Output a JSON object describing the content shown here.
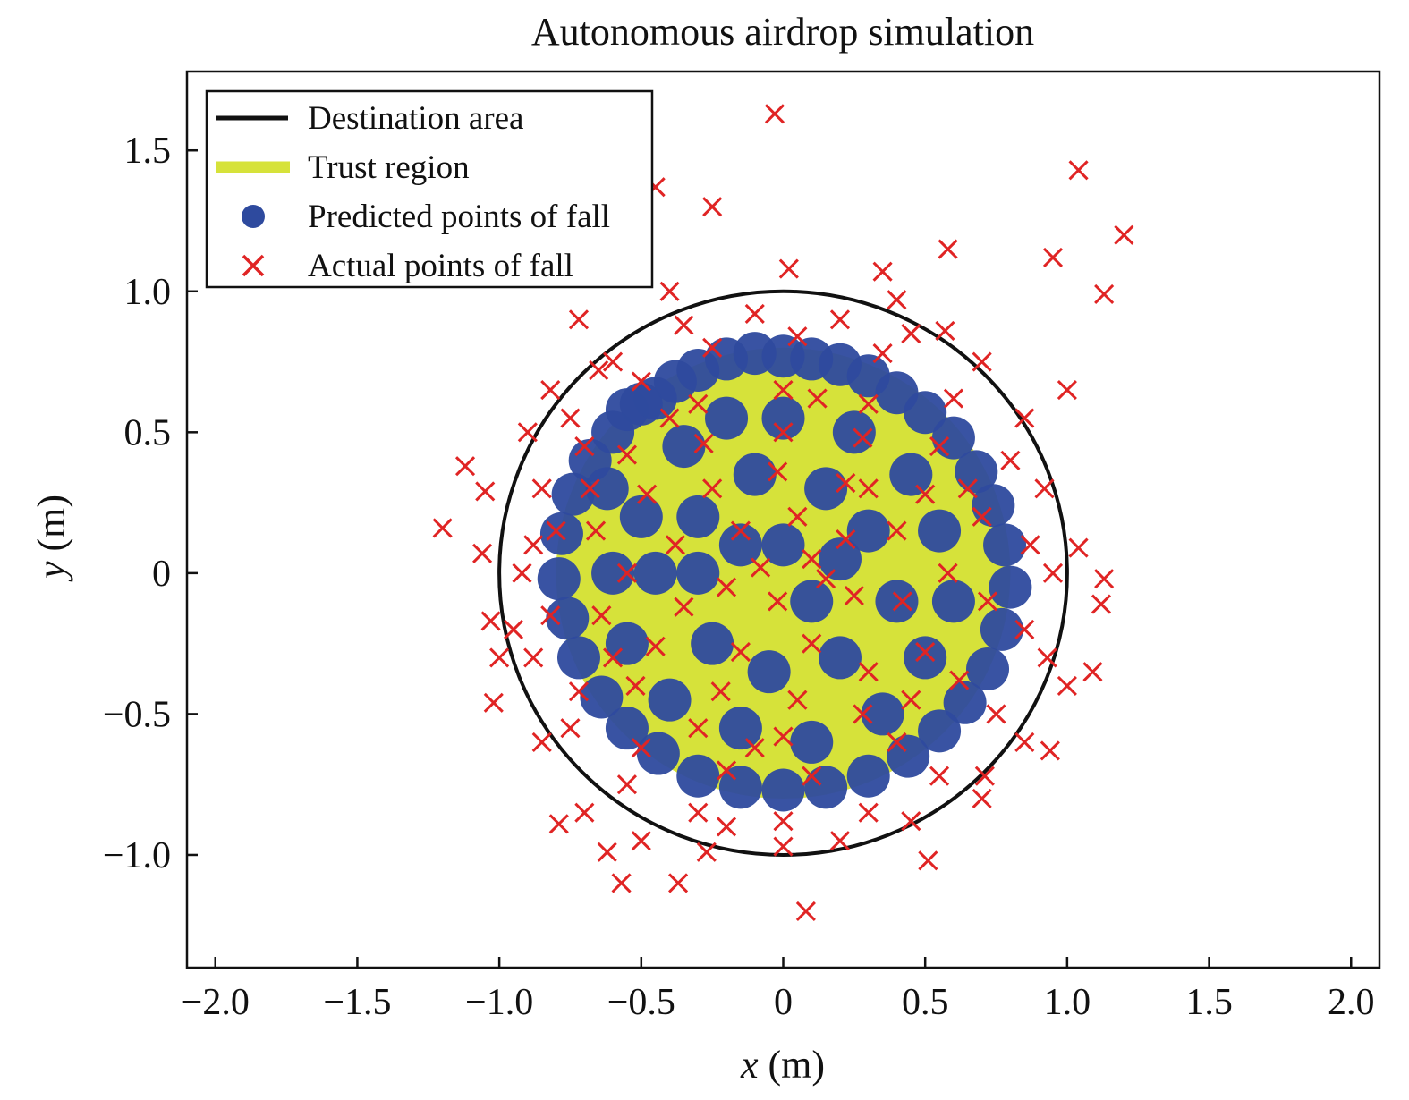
{
  "chart_data": {
    "type": "scatter",
    "title": "Autonomous airdrop simulation",
    "xlabel": {
      "var": "x",
      "unit": " (m)"
    },
    "ylabel": {
      "var": "y",
      "unit": " (m)"
    },
    "xlim": [
      -2.1,
      2.1
    ],
    "ylim": [
      -1.4,
      1.78
    ],
    "xticks": [
      {
        "value": -2.0,
        "label": "−2.0"
      },
      {
        "value": -1.5,
        "label": "−1.5"
      },
      {
        "value": -1.0,
        "label": "−1.0"
      },
      {
        "value": -0.5,
        "label": "−0.5"
      },
      {
        "value": 0,
        "label": "0"
      },
      {
        "value": 0.5,
        "label": "0.5"
      },
      {
        "value": 1.0,
        "label": "1.0"
      },
      {
        "value": 1.5,
        "label": "1.5"
      },
      {
        "value": 2.0,
        "label": "2.0"
      }
    ],
    "yticks": [
      {
        "value": -1.0,
        "label": "−1.0"
      },
      {
        "value": -0.5,
        "label": "−0.5"
      },
      {
        "value": 0,
        "label": "0"
      },
      {
        "value": 0.5,
        "label": "0.5"
      },
      {
        "value": 1.0,
        "label": "1.0"
      },
      {
        "value": 1.5,
        "label": "1.5"
      }
    ],
    "grid": false,
    "legend_position": "top-left",
    "series": [
      {
        "name": "Destination area",
        "kind": "circle",
        "center": [
          0.0,
          0.0
        ],
        "radius": 1.0,
        "color": "#111111"
      },
      {
        "name": "Trust region",
        "kind": "circle",
        "center": [
          0.0,
          0.0
        ],
        "radius": 0.8,
        "color": "#d6e23a"
      },
      {
        "name": "Predicted points of fall",
        "kind": "cloud",
        "center": [
          0.0,
          0.0
        ],
        "radius": 0.78,
        "color": "#2e4a9e",
        "points": [
          [
            -0.55,
            0.58
          ],
          [
            -0.5,
            0.6
          ],
          [
            -0.45,
            0.62
          ],
          [
            -0.38,
            0.68
          ],
          [
            -0.3,
            0.72
          ],
          [
            -0.2,
            0.76
          ],
          [
            -0.1,
            0.78
          ],
          [
            0.0,
            0.77
          ],
          [
            0.1,
            0.76
          ],
          [
            0.2,
            0.74
          ],
          [
            0.3,
            0.7
          ],
          [
            0.4,
            0.64
          ],
          [
            0.5,
            0.57
          ],
          [
            0.6,
            0.48
          ],
          [
            0.68,
            0.36
          ],
          [
            0.74,
            0.24
          ],
          [
            0.78,
            0.1
          ],
          [
            0.8,
            -0.05
          ],
          [
            0.77,
            -0.2
          ],
          [
            0.72,
            -0.34
          ],
          [
            0.64,
            -0.46
          ],
          [
            0.55,
            -0.56
          ],
          [
            0.44,
            -0.65
          ],
          [
            0.3,
            -0.72
          ],
          [
            0.15,
            -0.76
          ],
          [
            0.0,
            -0.77
          ],
          [
            -0.15,
            -0.76
          ],
          [
            -0.3,
            -0.72
          ],
          [
            -0.44,
            -0.64
          ],
          [
            -0.55,
            -0.55
          ],
          [
            -0.64,
            -0.44
          ],
          [
            -0.72,
            -0.3
          ],
          [
            -0.76,
            -0.16
          ],
          [
            -0.79,
            -0.02
          ],
          [
            -0.78,
            0.14
          ],
          [
            -0.74,
            0.28
          ],
          [
            -0.68,
            0.4
          ],
          [
            -0.6,
            0.5
          ],
          [
            -0.62,
            0.3
          ],
          [
            -0.5,
            0.2
          ],
          [
            -0.35,
            0.45
          ],
          [
            -0.2,
            0.55
          ],
          [
            0.0,
            0.55
          ],
          [
            0.25,
            0.5
          ],
          [
            0.45,
            0.35
          ],
          [
            0.55,
            0.15
          ],
          [
            0.6,
            -0.1
          ],
          [
            0.5,
            -0.3
          ],
          [
            0.35,
            -0.5
          ],
          [
            0.1,
            -0.6
          ],
          [
            -0.15,
            -0.55
          ],
          [
            -0.4,
            -0.45
          ],
          [
            -0.55,
            -0.25
          ],
          [
            -0.6,
            0.0
          ],
          [
            -0.45,
            0.0
          ],
          [
            -0.3,
            0.2
          ],
          [
            -0.1,
            0.35
          ],
          [
            0.15,
            0.3
          ],
          [
            0.3,
            0.15
          ],
          [
            0.4,
            -0.1
          ],
          [
            0.2,
            -0.3
          ],
          [
            -0.05,
            -0.35
          ],
          [
            -0.25,
            -0.25
          ],
          [
            -0.3,
            0.0
          ],
          [
            0.0,
            0.1
          ],
          [
            0.1,
            -0.1
          ],
          [
            -0.15,
            0.1
          ],
          [
            0.2,
            0.05
          ]
        ]
      },
      {
        "name": "Actual points of fall",
        "kind": "scatter",
        "marker": "x",
        "color": "#e02424",
        "points": [
          [
            -0.03,
            1.63
          ],
          [
            1.04,
            1.43
          ],
          [
            1.2,
            1.2
          ],
          [
            -0.25,
            1.3
          ],
          [
            -0.45,
            1.37
          ],
          [
            0.58,
            1.15
          ],
          [
            0.95,
            1.12
          ],
          [
            1.13,
            0.99
          ],
          [
            -0.52,
            1.06
          ],
          [
            0.35,
            1.07
          ],
          [
            0.02,
            1.08
          ],
          [
            0.4,
            0.97
          ],
          [
            -0.4,
            1.0
          ],
          [
            -0.72,
            0.9
          ],
          [
            0.57,
            0.86
          ],
          [
            1.0,
            0.65
          ],
          [
            -0.65,
            0.72
          ],
          [
            -0.82,
            0.65
          ],
          [
            -1.12,
            0.38
          ],
          [
            -1.05,
            0.29
          ],
          [
            -1.2,
            0.16
          ],
          [
            -1.06,
            0.07
          ],
          [
            -1.03,
            -0.17
          ],
          [
            -1.0,
            -0.3
          ],
          [
            -1.02,
            -0.46
          ],
          [
            1.04,
            0.09
          ],
          [
            1.13,
            -0.02
          ],
          [
            1.12,
            -0.11
          ],
          [
            1.09,
            -0.35
          ],
          [
            1.0,
            -0.4
          ],
          [
            0.94,
            -0.63
          ],
          [
            0.71,
            -0.72
          ],
          [
            0.51,
            -1.02
          ],
          [
            0.08,
            -1.2
          ],
          [
            -0.37,
            -1.1
          ],
          [
            -0.57,
            -1.1
          ],
          [
            -0.62,
            -0.99
          ],
          [
            -0.79,
            -0.89
          ],
          [
            -0.27,
            -0.99
          ],
          [
            0.0,
            -0.97
          ],
          [
            -0.9,
            0.5
          ],
          [
            -0.88,
            0.1
          ],
          [
            -0.95,
            -0.2
          ],
          [
            -0.85,
            -0.6
          ],
          [
            -0.7,
            -0.85
          ],
          [
            -0.5,
            -0.95
          ],
          [
            -0.2,
            -0.9
          ],
          [
            0.2,
            -0.95
          ],
          [
            0.45,
            -0.88
          ],
          [
            0.7,
            -0.8
          ],
          [
            0.85,
            -0.6
          ],
          [
            0.93,
            -0.3
          ],
          [
            0.95,
            0.0
          ],
          [
            0.92,
            0.3
          ],
          [
            0.85,
            0.55
          ],
          [
            0.7,
            0.75
          ],
          [
            0.45,
            0.85
          ],
          [
            0.2,
            0.9
          ],
          [
            -0.1,
            0.92
          ],
          [
            -0.35,
            0.88
          ],
          [
            -0.6,
            0.75
          ],
          [
            -0.75,
            0.55
          ],
          [
            -0.85,
            0.3
          ],
          [
            -0.92,
            0.0
          ],
          [
            -0.88,
            -0.3
          ],
          [
            -0.75,
            -0.55
          ],
          [
            -0.55,
            -0.75
          ],
          [
            -0.3,
            -0.85
          ],
          [
            0.0,
            -0.88
          ],
          [
            0.3,
            -0.85
          ],
          [
            0.55,
            -0.72
          ],
          [
            0.75,
            -0.5
          ],
          [
            0.85,
            -0.2
          ],
          [
            0.87,
            0.1
          ],
          [
            0.8,
            0.4
          ],
          [
            0.6,
            0.62
          ],
          [
            0.35,
            0.78
          ],
          [
            0.05,
            0.84
          ],
          [
            -0.25,
            0.8
          ],
          [
            -0.5,
            0.68
          ],
          [
            -0.7,
            0.45
          ],
          [
            -0.8,
            0.15
          ],
          [
            -0.82,
            -0.15
          ],
          [
            -0.72,
            -0.42
          ],
          [
            -0.5,
            -0.62
          ],
          [
            -0.2,
            -0.7
          ],
          [
            0.1,
            -0.72
          ],
          [
            0.4,
            -0.6
          ],
          [
            0.62,
            -0.38
          ],
          [
            0.72,
            -0.1
          ],
          [
            0.7,
            0.2
          ],
          [
            0.55,
            0.45
          ],
          [
            0.3,
            0.6
          ],
          [
            0.0,
            0.65
          ],
          [
            -0.3,
            0.6
          ],
          [
            -0.55,
            0.42
          ],
          [
            -0.66,
            0.15
          ],
          [
            -0.64,
            -0.15
          ],
          [
            -0.52,
            -0.4
          ],
          [
            -0.3,
            -0.55
          ],
          [
            0.0,
            -0.58
          ],
          [
            0.28,
            -0.5
          ],
          [
            0.5,
            -0.28
          ],
          [
            0.58,
            0.0
          ],
          [
            0.5,
            0.28
          ],
          [
            0.28,
            0.48
          ],
          [
            0.0,
            0.5
          ],
          [
            -0.28,
            0.46
          ],
          [
            -0.48,
            0.28
          ],
          [
            -0.55,
            0.0
          ],
          [
            -0.45,
            -0.26
          ],
          [
            -0.22,
            -0.42
          ],
          [
            0.05,
            -0.45
          ],
          [
            0.3,
            -0.35
          ],
          [
            0.42,
            -0.1
          ],
          [
            0.4,
            0.15
          ],
          [
            0.22,
            0.32
          ],
          [
            -0.02,
            0.36
          ],
          [
            -0.25,
            0.3
          ],
          [
            -0.38,
            0.1
          ],
          [
            -0.35,
            -0.12
          ],
          [
            -0.15,
            -0.28
          ],
          [
            0.1,
            -0.25
          ],
          [
            0.25,
            -0.08
          ],
          [
            0.22,
            0.12
          ],
          [
            0.05,
            0.2
          ],
          [
            -0.15,
            0.15
          ],
          [
            -0.2,
            -0.05
          ],
          [
            -0.02,
            -0.1
          ],
          [
            0.1,
            0.05
          ],
          [
            -0.08,
            0.02
          ],
          [
            0.15,
            -0.02
          ],
          [
            0.3,
            0.3
          ],
          [
            -0.4,
            0.55
          ],
          [
            0.45,
            -0.45
          ],
          [
            -0.6,
            -0.3
          ],
          [
            0.65,
            0.3
          ],
          [
            -0.1,
            -0.62
          ],
          [
            0.12,
            0.62
          ],
          [
            -0.68,
            0.3
          ]
        ]
      }
    ]
  }
}
